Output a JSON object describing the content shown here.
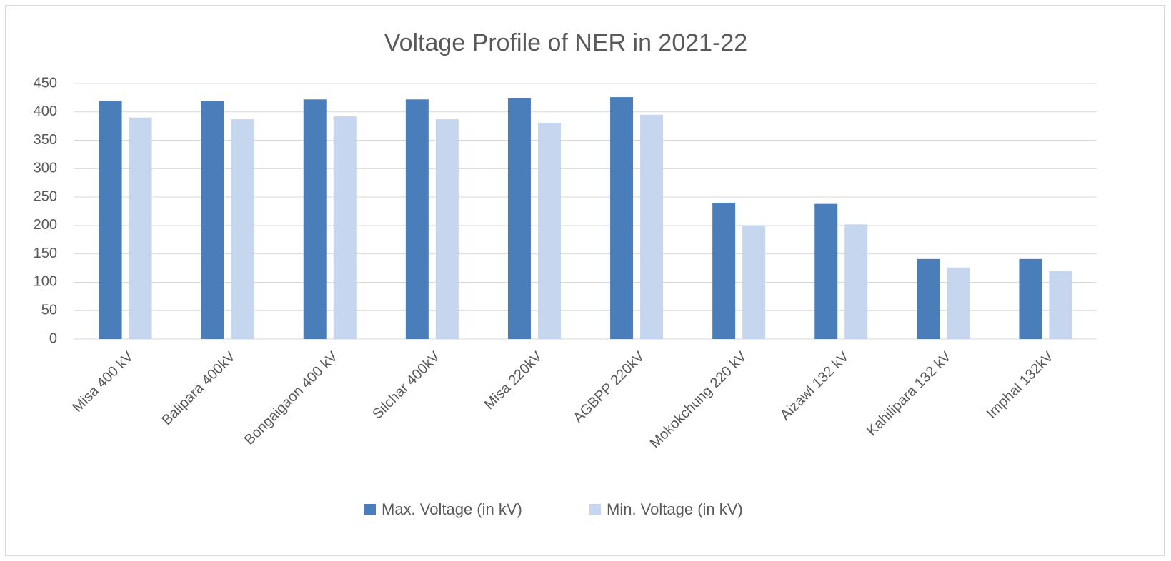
{
  "chart_data": {
    "type": "bar",
    "title": "Voltage Profile of NER in 2021-22",
    "categories": [
      "Misa 400 kV",
      "Balipara 400kV",
      "Bongaigaon 400 kV",
      "Silchar 400kV",
      "Misa 220kV",
      "AGBPP 220kV",
      "Mokokchung 220 kV",
      "Aizawl 132 kV",
      "Kahilipara 132 kV",
      "Imphal 132kV"
    ],
    "series": [
      {
        "name": "Max. Voltage (in kV)",
        "color": "#4a7ebb",
        "values": [
          419,
          419,
          422,
          422,
          424,
          426,
          240,
          238,
          141,
          141
        ]
      },
      {
        "name": "Min. Voltage (in kV)",
        "color": "#c5d6ee",
        "values": [
          390,
          387,
          392,
          387,
          381,
          395,
          200,
          202,
          126,
          120
        ]
      }
    ],
    "ylim": [
      0,
      450
    ],
    "yticks": [
      0,
      50,
      100,
      150,
      200,
      250,
      300,
      350,
      400,
      450
    ],
    "grid": true,
    "legend": "bottom"
  }
}
